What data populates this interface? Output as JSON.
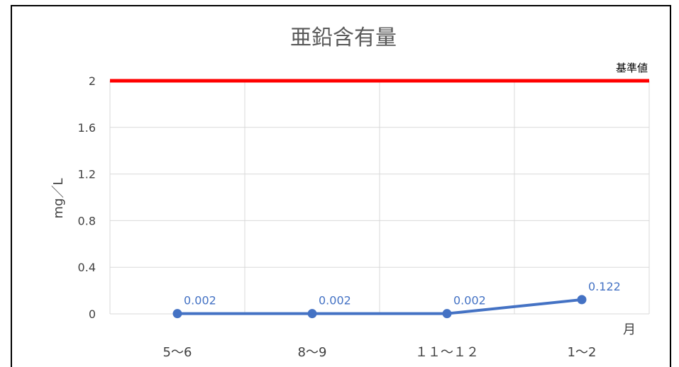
{
  "chart_data": {
    "type": "line",
    "title": "亜鉛含有量",
    "ylabel": "mg／L",
    "xlabel": "月",
    "categories": [
      "5～6",
      "8～9",
      "１１～１２",
      "1～2"
    ],
    "ylim": [
      0,
      2
    ],
    "yticks": [
      0,
      0.4,
      0.8,
      1.2,
      1.6,
      2
    ],
    "ytick_labels": [
      "0",
      "0.4",
      "0.8",
      "1.2",
      "1.6",
      "2"
    ],
    "grid": true,
    "series": [
      {
        "values": [
          0.002,
          0.002,
          0.002,
          0.122
        ],
        "data_labels": [
          "0.002",
          "0.002",
          "0.002",
          "0.122"
        ],
        "color": "#4472c4"
      }
    ],
    "reference_line": {
      "value": 2,
      "label": "基準値",
      "color": "#ff0000"
    }
  }
}
